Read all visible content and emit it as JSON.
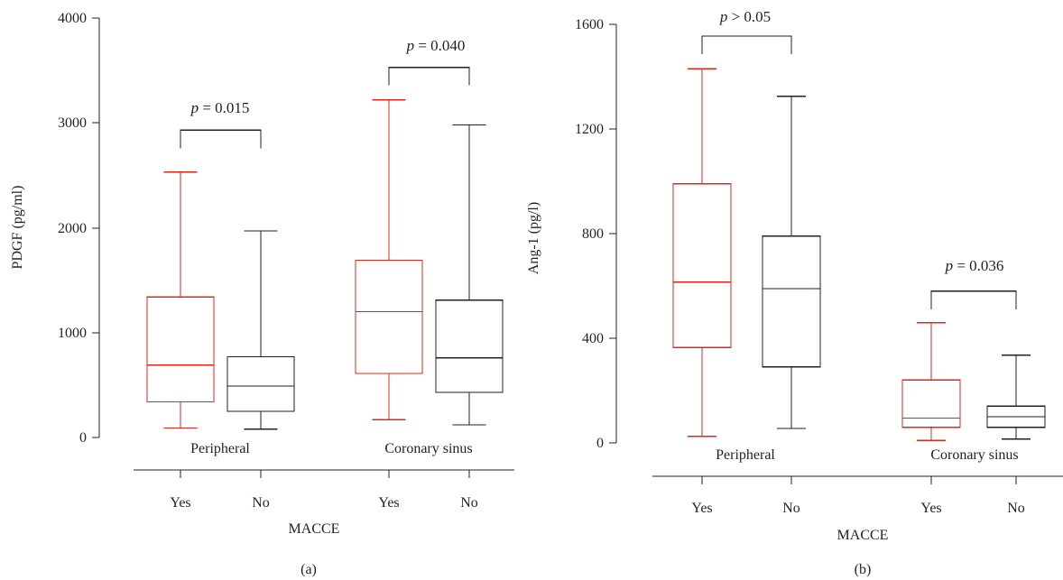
{
  "colors": {
    "yes": "#e2241b",
    "no": "#231f20",
    "axis": "#231f20"
  },
  "chart_data": [
    {
      "panel": "(a)",
      "type": "box",
      "ylabel": "PDGF (pg/ml)",
      "xlabel": "MACCE",
      "ylim": [
        0,
        4000
      ],
      "yticks": [
        "0",
        "1000",
        "2000",
        "3000",
        "4000"
      ],
      "groups": [
        {
          "name": "Peripheral",
          "p_label": "= 0.015",
          "p_bracket_y": 2930,
          "boxes": [
            {
              "label": "Yes",
              "color": "yes",
              "min": 90,
              "q1": 340,
              "median": 690,
              "q3": 1340,
              "max": 2530
            },
            {
              "label": "No",
              "color": "no",
              "min": 80,
              "q1": 250,
              "median": 490,
              "q3": 770,
              "max": 1970
            }
          ]
        },
        {
          "name": "Coronary sinus",
          "p_label": "= 0.040",
          "p_bracket_y": 3530,
          "boxes": [
            {
              "label": "Yes",
              "color": "yes",
              "min": 170,
              "q1": 610,
              "median": 1200,
              "q3": 1690,
              "max": 3220
            },
            {
              "label": "No",
              "color": "no",
              "min": 120,
              "q1": 430,
              "median": 760,
              "q3": 1310,
              "max": 2980
            }
          ]
        }
      ]
    },
    {
      "panel": "(b)",
      "type": "box",
      "ylabel": "Ang-1 (pg/l)",
      "xlabel": "MACCE",
      "ylim": [
        0,
        1600
      ],
      "yticks": [
        "0",
        "400",
        "800",
        "1200",
        "1600"
      ],
      "groups": [
        {
          "name": "Peripheral",
          "p_label": "> 0.05",
          "p_bracket_y": 1555,
          "boxes": [
            {
              "label": "Yes",
              "color": "yes",
              "min": 25,
              "q1": 365,
              "median": 615,
              "q3": 990,
              "max": 1430
            },
            {
              "label": "No",
              "color": "no",
              "min": 55,
              "q1": 290,
              "median": 590,
              "q3": 790,
              "max": 1325
            }
          ]
        },
        {
          "name": "Coronary sinus",
          "p_label": "= 0.036",
          "p_bracket_y": 580,
          "boxes": [
            {
              "label": "Yes",
              "color": "yes",
              "min": 10,
              "q1": 60,
              "median": 95,
              "q3": 240,
              "max": 460
            },
            {
              "label": "No",
              "color": "no",
              "min": 15,
              "q1": 60,
              "median": 100,
              "q3": 140,
              "max": 335
            }
          ]
        }
      ]
    }
  ]
}
